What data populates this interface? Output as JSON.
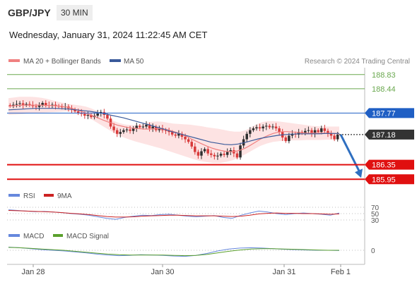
{
  "header": {
    "symbol": "GBP/JPY",
    "timeframe": "30 MIN",
    "datetime": "Wednesday, January 31, 2024 11:22:45 AM CET"
  },
  "legend": {
    "ma20_label": "MA 20 + Bollinger Bands",
    "ma50_label": "MA 50",
    "credit": "Research © 2024 Trading Central",
    "rsi_label": "RSI",
    "rsi_ma_label": "9MA",
    "macd_label": "MACD",
    "macd_signal_label": "MACD Signal"
  },
  "colors": {
    "ma20": "#f08080",
    "ma50": "#3a5a9a",
    "bands": "#fde3e3",
    "candle_up": "#2e2e2e",
    "candle_down": "#d83a3a",
    "resistance": "#6aa84f",
    "pivot": "#1f5fc4",
    "support": "#e01010",
    "current": "#333333",
    "arrow": "#2f6fc0",
    "rsi": "#6688dd",
    "rsi_ma": "#cc2222",
    "macd": "#6688dd",
    "macd_signal": "#5aa02c"
  },
  "chart_data": [
    {
      "type": "candlestick",
      "title": "GBP/JPY 30 MIN",
      "x_ticks": [
        "Jan 28",
        "Jan 30",
        "Jan 31",
        "Feb 1"
      ],
      "ylim": [
        185.8,
        189.0
      ],
      "levels": [
        {
          "kind": "resistance",
          "value": 188.83,
          "label": "188.83"
        },
        {
          "kind": "resistance",
          "value": 188.44,
          "label": "188.44"
        },
        {
          "kind": "pivot",
          "value": 187.77,
          "label": "187.77"
        },
        {
          "kind": "current",
          "value": 187.18,
          "label": "187.18"
        },
        {
          "kind": "support",
          "value": 186.35,
          "label": "186.35"
        },
        {
          "kind": "support",
          "value": 185.95,
          "label": "185.95"
        }
      ],
      "closes": [
        187.97,
        188.0,
        188.02,
        188.04,
        187.99,
        188.02,
        188.0,
        187.96,
        187.94,
        187.98,
        188.05,
        187.99,
        187.98,
        188.0,
        187.97,
        187.95,
        187.93,
        187.95,
        187.9,
        187.87,
        187.82,
        187.78,
        187.75,
        187.7,
        187.72,
        187.66,
        187.7,
        187.76,
        187.8,
        187.72,
        187.62,
        187.4,
        187.3,
        187.2,
        187.25,
        187.3,
        187.32,
        187.28,
        187.35,
        187.42,
        187.38,
        187.4,
        187.45,
        187.35,
        187.4,
        187.3,
        187.35,
        187.3,
        187.28,
        187.25,
        187.18,
        187.15,
        187.2,
        187.12,
        187.05,
        186.98,
        186.85,
        186.7,
        186.6,
        186.72,
        186.78,
        186.66,
        186.62,
        186.58,
        186.6,
        186.65,
        186.62,
        186.7,
        186.75,
        186.66,
        186.55,
        186.88,
        187.05,
        187.2,
        187.3,
        187.35,
        187.38,
        187.35,
        187.4,
        187.42,
        187.38,
        187.4,
        187.35,
        187.25,
        187.1,
        187.0,
        187.15,
        187.2,
        187.18,
        187.25,
        187.22,
        187.28,
        187.3,
        187.2,
        187.3,
        187.25,
        187.35,
        187.28,
        187.2,
        187.15,
        187.05,
        187.18
      ],
      "ma20": [
        187.96,
        187.97,
        187.98,
        187.99,
        187.99,
        187.99,
        187.99,
        187.99,
        187.98,
        187.98,
        187.97,
        187.96,
        187.94,
        187.92,
        187.88,
        187.84,
        187.79,
        187.74,
        187.69,
        187.63,
        187.58,
        187.53,
        187.49,
        187.44,
        187.41,
        187.38,
        187.36,
        187.35,
        187.34,
        187.33,
        187.33,
        187.34,
        187.34,
        187.33,
        187.3,
        187.26,
        187.22,
        187.17,
        187.11,
        187.04,
        186.98,
        186.92,
        186.86,
        186.81,
        186.77,
        186.74,
        186.72,
        186.71,
        186.72,
        186.75,
        186.8,
        186.87,
        186.95,
        187.03,
        187.1,
        187.16,
        187.21,
        187.24,
        187.26,
        187.26,
        187.25,
        187.24,
        187.23,
        187.22,
        187.22,
        187.22,
        187.22,
        187.22,
        187.22,
        187.21,
        187.2
      ],
      "bollinger_upper": [
        188.18,
        188.2,
        188.22,
        188.22,
        188.22,
        188.21,
        188.19,
        188.16,
        188.12,
        188.08,
        188.05,
        188.02,
        188.0,
        187.98,
        187.95,
        187.9,
        187.83,
        187.74,
        187.64,
        187.56,
        187.5,
        187.46,
        187.44,
        187.44,
        187.46,
        187.5,
        187.53,
        187.54,
        187.53,
        187.5,
        187.48,
        187.47,
        187.46,
        187.45,
        187.43,
        187.41,
        187.38,
        187.36,
        187.34,
        187.31,
        187.28,
        187.26,
        187.26,
        187.3,
        187.38,
        187.46,
        187.52,
        187.55,
        187.55,
        187.54,
        187.52,
        187.5,
        187.48,
        187.46,
        187.44,
        187.42,
        187.41,
        187.4,
        187.4,
        187.4,
        187.4
      ],
      "bollinger_lower": [
        187.72,
        187.73,
        187.74,
        187.76,
        187.77,
        187.78,
        187.79,
        187.8,
        187.81,
        187.82,
        187.8,
        187.75,
        187.66,
        187.55,
        187.44,
        187.33,
        187.22,
        187.13,
        187.06,
        187.0,
        186.95,
        186.9,
        186.85,
        186.8,
        186.74,
        186.68,
        186.62,
        186.56,
        186.5,
        186.45,
        186.42,
        186.4,
        186.4,
        186.43,
        186.48,
        186.56,
        186.66,
        186.76,
        186.86,
        186.93,
        186.98,
        187.0,
        187.01,
        187.02,
        187.02,
        187.03,
        187.03,
        187.03,
        187.04,
        187.04,
        187.04
      ],
      "ma50": [
        187.86,
        187.87,
        187.88,
        187.89,
        187.9,
        187.9,
        187.9,
        187.9,
        187.89,
        187.88,
        187.86,
        187.84,
        187.82,
        187.79,
        187.76,
        187.72,
        187.68,
        187.64,
        187.59,
        187.54,
        187.49,
        187.44,
        187.38,
        187.33,
        187.27,
        187.22,
        187.17,
        187.12,
        187.07,
        187.02,
        186.97,
        186.94,
        186.91,
        186.9,
        186.92,
        186.96,
        187.01,
        187.06,
        187.1,
        187.13,
        187.16,
        187.18,
        187.19,
        187.2,
        187.2,
        187.2,
        187.2,
        187.21,
        187.21,
        187.21
      ]
    },
    {
      "type": "line",
      "title": "RSI",
      "y_ticks": [
        70,
        50,
        30
      ],
      "series": [
        {
          "name": "RSI",
          "values": [
            62,
            60,
            58,
            56,
            57,
            55,
            53,
            50,
            48,
            45,
            40,
            35,
            32,
            38,
            42,
            45,
            44,
            47,
            48,
            45,
            42,
            40,
            42,
            44,
            38,
            35,
            45,
            52,
            58,
            55,
            50,
            47,
            50,
            52,
            50,
            48,
            45,
            52
          ]
        },
        {
          "name": "9MA",
          "values": [
            60,
            59,
            58,
            57,
            56,
            55,
            53,
            51,
            49,
            47,
            44,
            41,
            39,
            39,
            40,
            42,
            43,
            44,
            45,
            45,
            44,
            43,
            43,
            43,
            42,
            41,
            42,
            45,
            49,
            51,
            52,
            51,
            51,
            50,
            50,
            49,
            48,
            49
          ]
        }
      ]
    },
    {
      "type": "line",
      "title": "MACD",
      "y_ticks": [
        0
      ],
      "series": [
        {
          "name": "MACD",
          "values": [
            0.1,
            0.08,
            0.05,
            0.02,
            0.0,
            -0.02,
            -0.05,
            -0.08,
            -0.12,
            -0.15,
            -0.17,
            -0.16,
            -0.14,
            -0.15,
            -0.16,
            -0.18,
            -0.19,
            -0.16,
            -0.1,
            -0.02,
            0.04,
            0.07,
            0.08,
            0.07,
            0.05,
            0.03,
            0.02,
            0.01,
            0.0,
            0.0,
            -0.01
          ]
        },
        {
          "name": "MACD Signal",
          "values": [
            0.09,
            0.08,
            0.06,
            0.04,
            0.02,
            0.0,
            -0.03,
            -0.06,
            -0.09,
            -0.12,
            -0.14,
            -0.15,
            -0.15,
            -0.15,
            -0.15,
            -0.16,
            -0.17,
            -0.16,
            -0.13,
            -0.08,
            -0.03,
            0.01,
            0.04,
            0.05,
            0.05,
            0.04,
            0.03,
            0.02,
            0.01,
            0.0,
            0.0
          ]
        }
      ]
    }
  ]
}
